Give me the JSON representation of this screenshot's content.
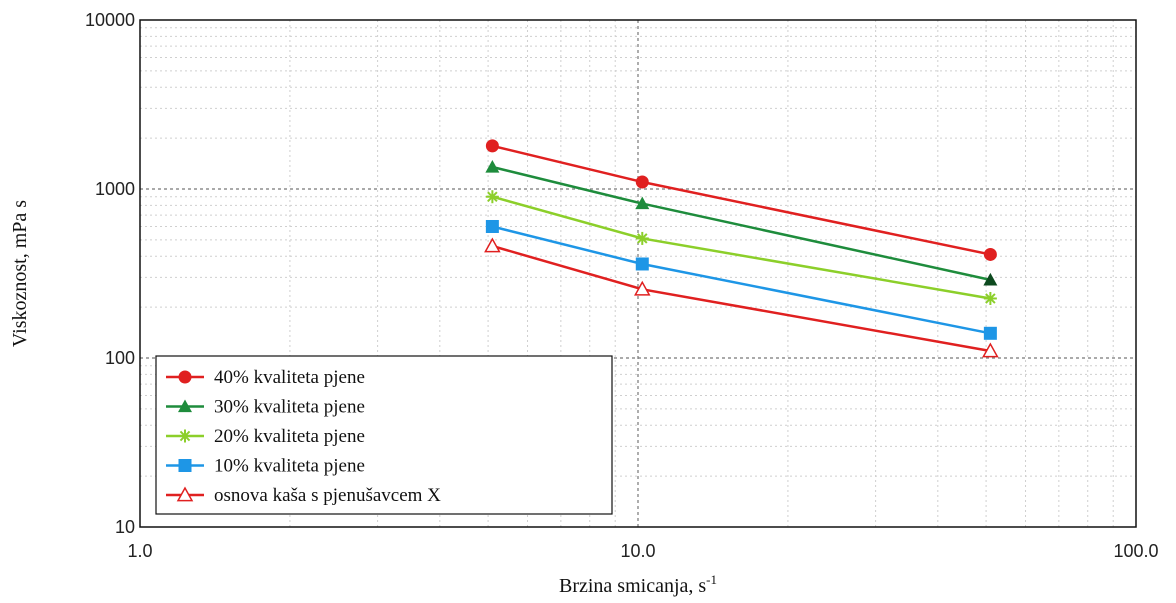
{
  "chart_data": {
    "type": "line",
    "title": "",
    "xlabel": "Brzina smicanja, s",
    "xlabel_sup": "-1",
    "ylabel": "Viskoznost, mPa s",
    "xscale": "log",
    "yscale": "log",
    "xlim": [
      1,
      100
    ],
    "ylim": [
      10,
      10000
    ],
    "x_ticks": [
      "1.0",
      "10.0",
      "100.0"
    ],
    "y_ticks": [
      "10",
      "100",
      "1000",
      "10000"
    ],
    "grid": true,
    "legend_position": "bottom-left",
    "x": [
      5.1,
      10.2,
      51
    ],
    "series": [
      {
        "name": "40% kvaliteta pjene",
        "values": [
          1800,
          1100,
          410
        ],
        "color": "#e02020",
        "marker": "circle"
      },
      {
        "name": "30% kvaliteta pjene",
        "values": [
          1350,
          820,
          290
        ],
        "color": "#1e8c3c",
        "marker": "triangle"
      },
      {
        "name": "20% kvaliteta pjene",
        "values": [
          900,
          510,
          225
        ],
        "color": "#8ccf2a",
        "marker": "star"
      },
      {
        "name": "10% kvaliteta pjene",
        "values": [
          600,
          360,
          140
        ],
        "color": "#1e96e6",
        "marker": "square"
      },
      {
        "name": "osnova kaša s pjenušavcem X",
        "values": [
          460,
          255,
          110
        ],
        "color": "#e02020",
        "marker": "triangle-open"
      }
    ]
  }
}
